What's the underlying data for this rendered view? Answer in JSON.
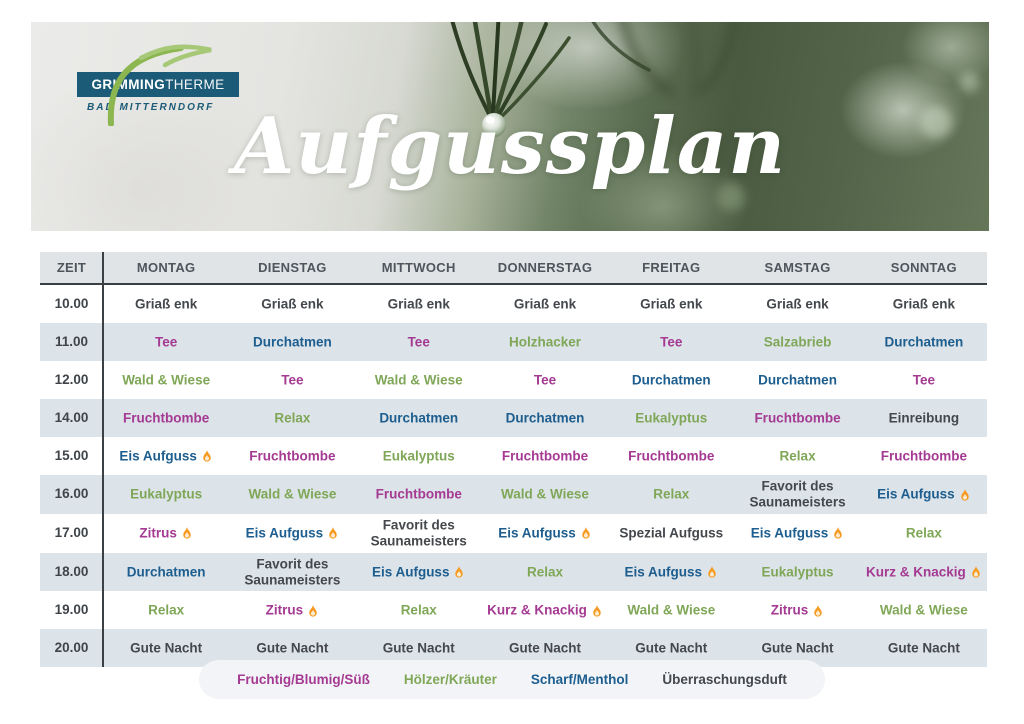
{
  "logo": {
    "brand_bold": "GRIMMING",
    "brand_light": "THERME",
    "subtitle": "BAD MITTERNDORF",
    "box_color": "#1c5b78",
    "swoosh_color": "#8cb64f"
  },
  "banner": {
    "title": "Aufgussplan"
  },
  "colors": {
    "fruity": "#a53a92",
    "herbal": "#7fa757",
    "sharp": "#1d5e8f",
    "neutral": "#44484d"
  },
  "flame_colors": {
    "outer": "#f59b23",
    "inner": "#fdebd0"
  },
  "table": {
    "time_header": "ZEIT",
    "day_headers": [
      "MONTAG",
      "DIENSTAG",
      "MITTWOCH",
      "DONNERSTAG",
      "FREITAG",
      "SAMSTAG",
      "SONNTAG"
    ],
    "rows": [
      {
        "time": "10.00",
        "cells": [
          {
            "t": "Griaß enk",
            "c": "neutral"
          },
          {
            "t": "Griaß enk",
            "c": "neutral"
          },
          {
            "t": "Griaß enk",
            "c": "neutral"
          },
          {
            "t": "Griaß enk",
            "c": "neutral"
          },
          {
            "t": "Griaß enk",
            "c": "neutral"
          },
          {
            "t": "Griaß enk",
            "c": "neutral"
          },
          {
            "t": "Griaß enk",
            "c": "neutral"
          }
        ]
      },
      {
        "time": "11.00",
        "cells": [
          {
            "t": "Tee",
            "c": "fruity"
          },
          {
            "t": "Durchatmen",
            "c": "sharp"
          },
          {
            "t": "Tee",
            "c": "fruity"
          },
          {
            "t": "Holzhacker",
            "c": "herbal"
          },
          {
            "t": "Tee",
            "c": "fruity"
          },
          {
            "t": "Salzabrieb",
            "c": "herbal"
          },
          {
            "t": "Durchatmen",
            "c": "sharp"
          }
        ]
      },
      {
        "time": "12.00",
        "cells": [
          {
            "t": "Wald & Wiese",
            "c": "herbal"
          },
          {
            "t": "Tee",
            "c": "fruity"
          },
          {
            "t": "Wald & Wiese",
            "c": "herbal"
          },
          {
            "t": "Tee",
            "c": "fruity"
          },
          {
            "t": "Durchatmen",
            "c": "sharp"
          },
          {
            "t": "Durchatmen",
            "c": "sharp"
          },
          {
            "t": "Tee",
            "c": "fruity"
          }
        ]
      },
      {
        "time": "14.00",
        "cells": [
          {
            "t": "Fruchtbombe",
            "c": "fruity"
          },
          {
            "t": "Relax",
            "c": "herbal"
          },
          {
            "t": "Durchatmen",
            "c": "sharp"
          },
          {
            "t": "Durchatmen",
            "c": "sharp"
          },
          {
            "t": "Eukalyptus",
            "c": "herbal"
          },
          {
            "t": "Fruchtbombe",
            "c": "fruity"
          },
          {
            "t": "Einreibung",
            "c": "neutral"
          }
        ]
      },
      {
        "time": "15.00",
        "cells": [
          {
            "t": "Eis Aufguss",
            "c": "sharp",
            "flame": true
          },
          {
            "t": "Fruchtbombe",
            "c": "fruity"
          },
          {
            "t": "Eukalyptus",
            "c": "herbal"
          },
          {
            "t": "Fruchtbombe",
            "c": "fruity"
          },
          {
            "t": "Fruchtbombe",
            "c": "fruity"
          },
          {
            "t": "Relax",
            "c": "herbal"
          },
          {
            "t": "Fruchtbombe",
            "c": "fruity"
          }
        ]
      },
      {
        "time": "16.00",
        "cells": [
          {
            "t": "Eukalyptus",
            "c": "herbal"
          },
          {
            "t": "Wald & Wiese",
            "c": "herbal"
          },
          {
            "t": "Fruchtbombe",
            "c": "fruity"
          },
          {
            "t": "Wald & Wiese",
            "c": "herbal"
          },
          {
            "t": "Relax",
            "c": "herbal"
          },
          {
            "t": "Favorit des Saunameisters",
            "c": "neutral"
          },
          {
            "t": "Eis Aufguss",
            "c": "sharp",
            "flame": true
          }
        ]
      },
      {
        "time": "17.00",
        "cells": [
          {
            "t": "Zitrus",
            "c": "fruity",
            "flame": true
          },
          {
            "t": "Eis Aufguss",
            "c": "sharp",
            "flame": true
          },
          {
            "t": "Favorit des Saunameisters",
            "c": "neutral"
          },
          {
            "t": "Eis Aufguss",
            "c": "sharp",
            "flame": true
          },
          {
            "t": "Spezial Aufguss",
            "c": "neutral"
          },
          {
            "t": "Eis Aufguss",
            "c": "sharp",
            "flame": true
          },
          {
            "t": "Relax",
            "c": "herbal"
          }
        ]
      },
      {
        "time": "18.00",
        "cells": [
          {
            "t": "Durchatmen",
            "c": "sharp"
          },
          {
            "t": "Favorit des Saunameisters",
            "c": "neutral"
          },
          {
            "t": "Eis Aufguss",
            "c": "sharp",
            "flame": true
          },
          {
            "t": "Relax",
            "c": "herbal"
          },
          {
            "t": "Eis Aufguss",
            "c": "sharp",
            "flame": true
          },
          {
            "t": "Eukalyptus",
            "c": "herbal"
          },
          {
            "t": "Kurz & Knackig",
            "c": "fruity",
            "flame": true
          }
        ]
      },
      {
        "time": "19.00",
        "cells": [
          {
            "t": "Relax",
            "c": "herbal"
          },
          {
            "t": "Zitrus",
            "c": "fruity",
            "flame": true
          },
          {
            "t": "Relax",
            "c": "herbal"
          },
          {
            "t": "Kurz & Knackig",
            "c": "fruity",
            "flame": true
          },
          {
            "t": "Wald & Wiese",
            "c": "herbal"
          },
          {
            "t": "Zitrus",
            "c": "fruity",
            "flame": true
          },
          {
            "t": "Wald & Wiese",
            "c": "herbal"
          }
        ]
      },
      {
        "time": "20.00",
        "cells": [
          {
            "t": "Gute Nacht",
            "c": "neutral"
          },
          {
            "t": "Gute Nacht",
            "c": "neutral"
          },
          {
            "t": "Gute Nacht",
            "c": "neutral"
          },
          {
            "t": "Gute Nacht",
            "c": "neutral"
          },
          {
            "t": "Gute Nacht",
            "c": "neutral"
          },
          {
            "t": "Gute Nacht",
            "c": "neutral"
          },
          {
            "t": "Gute Nacht",
            "c": "neutral"
          }
        ]
      }
    ]
  },
  "legend": {
    "items": [
      {
        "label": "Fruchtig/Blumig/Süß",
        "c": "fruity"
      },
      {
        "label": "Hölzer/Kräuter",
        "c": "herbal"
      },
      {
        "label": "Scharf/Menthol",
        "c": "sharp"
      },
      {
        "label": "Überraschungsduft",
        "c": "neutral"
      }
    ]
  }
}
